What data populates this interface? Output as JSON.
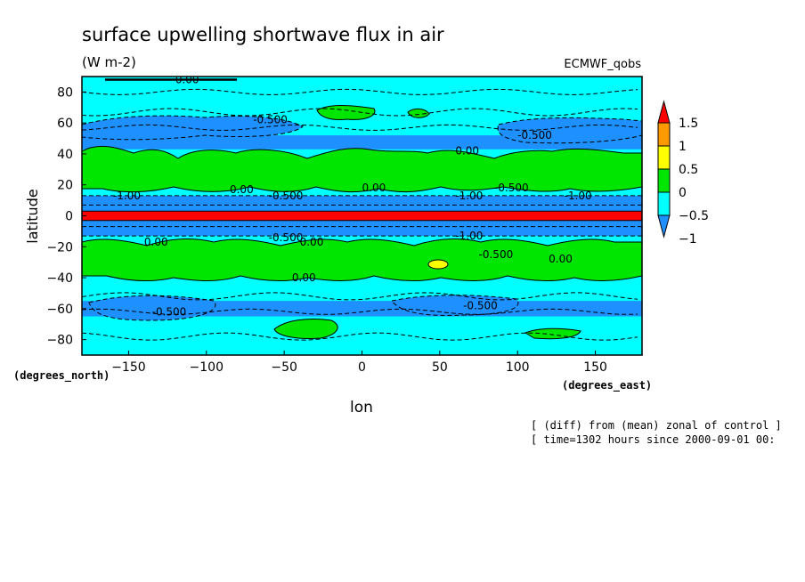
{
  "chart_data": {
    "type": "heatmap",
    "title": "surface upwelling shortwave flux in air",
    "subtitle": "(W m-2)",
    "model_label": "ECMWF_qobs",
    "xlabel": "lon",
    "ylabel": "latitude",
    "x_units": "(degrees_east)",
    "y_units": "(degrees_north)",
    "xlim": [
      -180,
      180
    ],
    "ylim": [
      -90,
      90
    ],
    "x_ticks": [
      -150,
      -100,
      -50,
      0,
      50,
      100,
      150
    ],
    "y_ticks": [
      -80,
      -60,
      -40,
      -20,
      0,
      20,
      40,
      60,
      80
    ],
    "colorbar": {
      "levels": [
        -1,
        -0.5,
        0,
        0.5,
        1,
        1.5
      ],
      "tick_labels": [
        "-1",
        "-0.5",
        "0",
        "0.5",
        "1",
        "1.5"
      ],
      "colors": [
        "#1e90ff",
        "#00ffff",
        "#00e600",
        "#ffff00",
        "#ff9900",
        "#ff0000"
      ]
    },
    "contour_labels": [
      "0.00",
      "-0.500",
      "-0.500",
      "0.00",
      "0.00",
      "-1.00",
      "-0.500",
      "0.00",
      "-1.00",
      "-0.500",
      "-1.00",
      "0.00",
      "-0.500",
      "0.00",
      "-1.00",
      "-0.500",
      "0.00",
      "0.00",
      "-0.500",
      "-0.500"
    ],
    "zonal_bands": [
      {
        "lat_range": [
          75,
          90
        ],
        "value": -0.25
      },
      {
        "lat_range": [
          50,
          75
        ],
        "value": -0.3
      },
      {
        "lat_range": [
          43,
          52
        ],
        "value": -0.6
      },
      {
        "lat_range": [
          20,
          43
        ],
        "value": 0.25
      },
      {
        "lat_range": [
          13,
          20
        ],
        "value": -0.3
      },
      {
        "lat_range": [
          7,
          13
        ],
        "value": -1.2
      },
      {
        "lat_range": [
          3,
          7
        ],
        "value": -0.7
      },
      {
        "lat_range": [
          -3,
          3
        ],
        "value": 1.6
      },
      {
        "lat_range": [
          -7,
          -3
        ],
        "value": -0.7
      },
      {
        "lat_range": [
          -13,
          -7
        ],
        "value": -1.2
      },
      {
        "lat_range": [
          -20,
          -13
        ],
        "value": -0.3
      },
      {
        "lat_range": [
          -45,
          -20
        ],
        "value": 0.25
      },
      {
        "lat_range": [
          -55,
          -45
        ],
        "value": -0.3
      },
      {
        "lat_range": [
          -65,
          -55
        ],
        "value": -0.6
      },
      {
        "lat_range": [
          -90,
          -65
        ],
        "value": -0.25
      }
    ],
    "annotations": [
      "[ (diff) from (mean) zonal of control ]",
      "[ time=1302 hours since 2000-09-01 00:"
    ]
  }
}
